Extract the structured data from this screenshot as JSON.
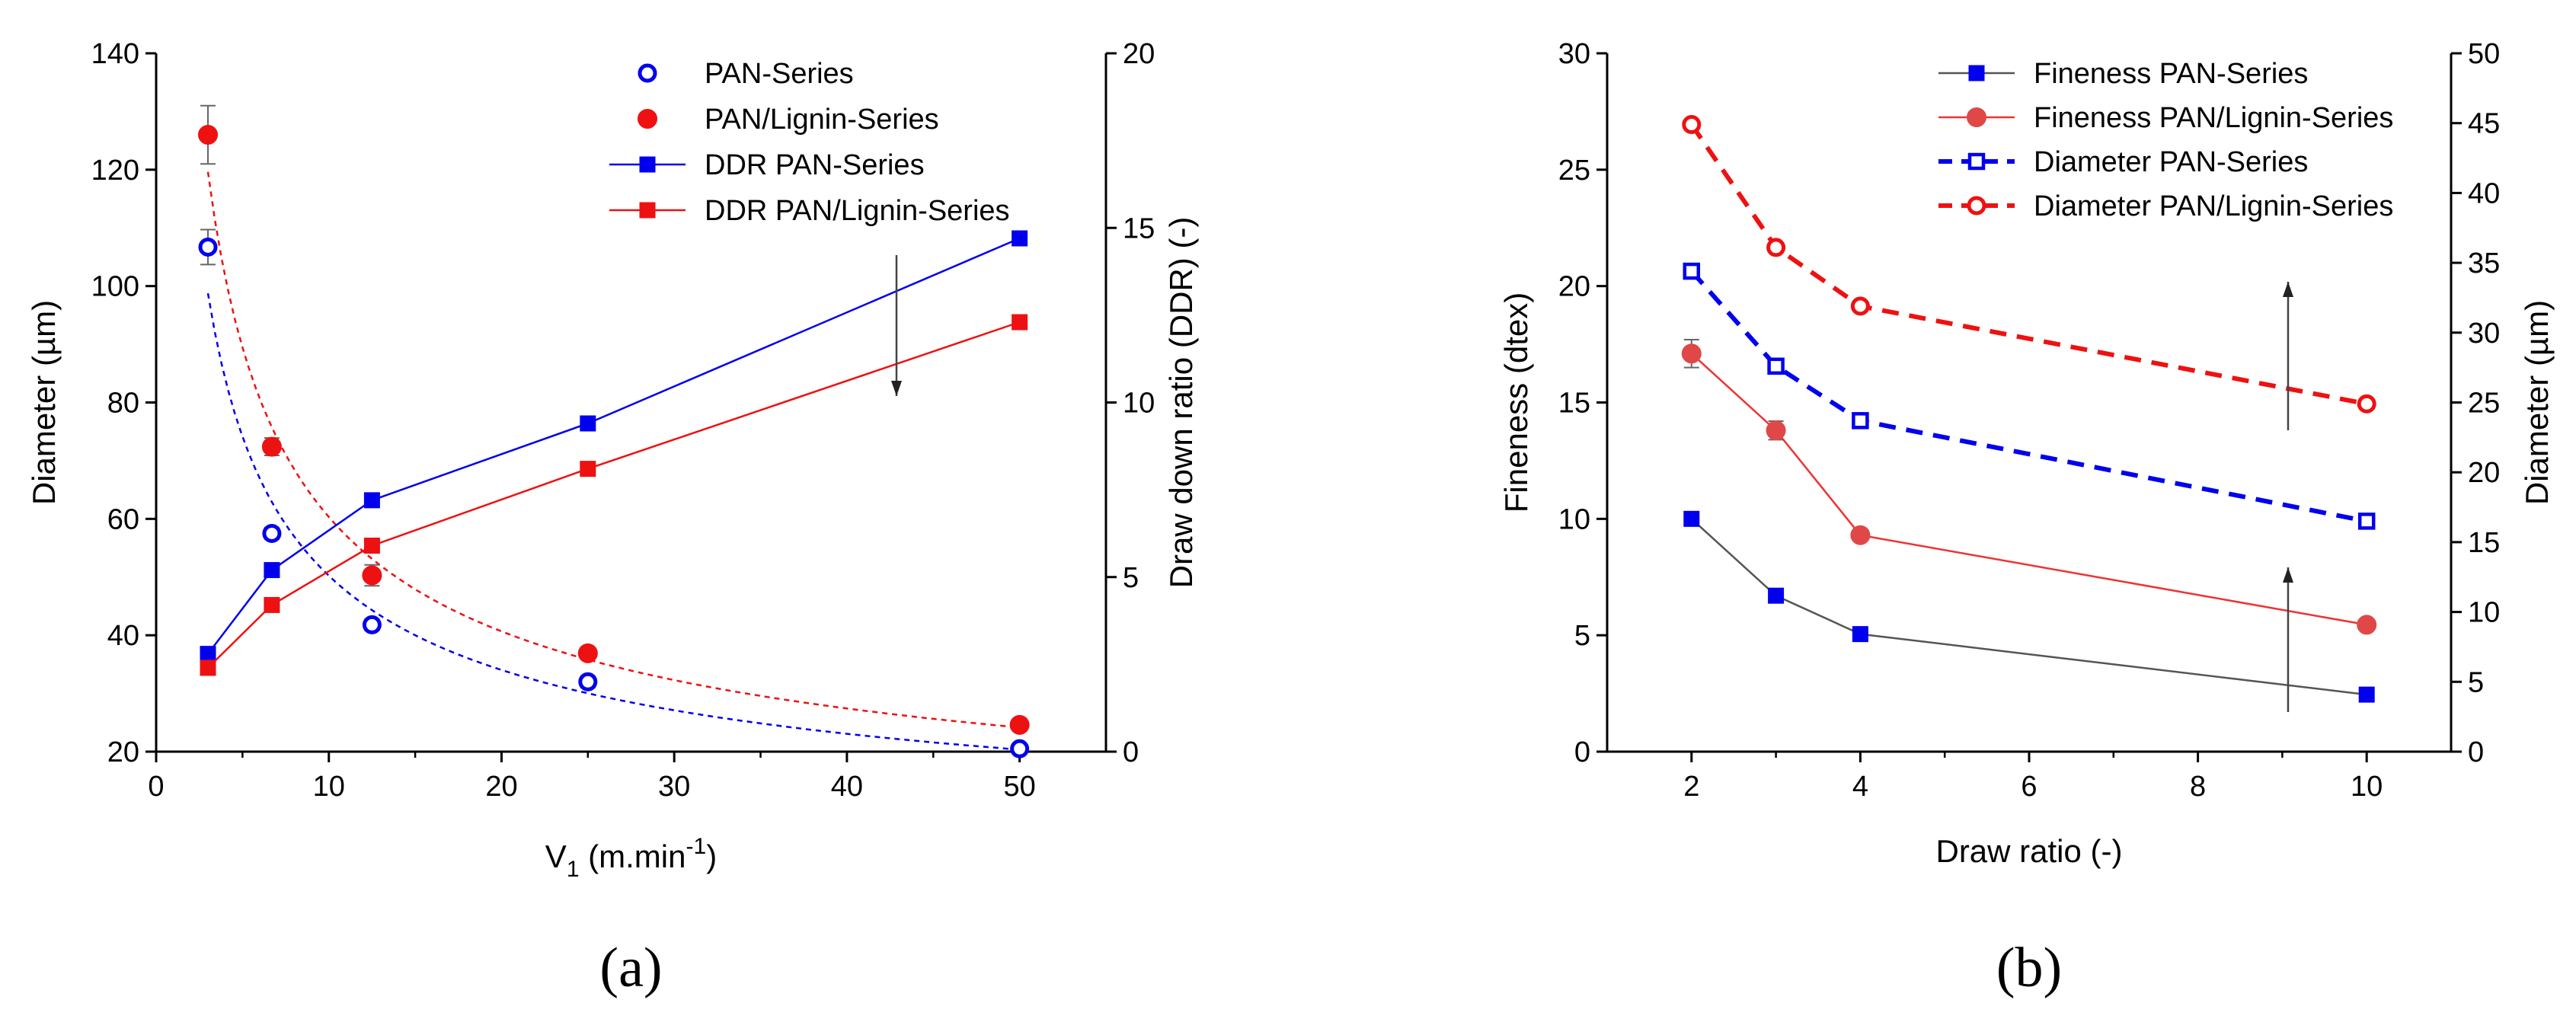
{
  "chart_data": [
    {
      "type": "scatter",
      "panel_label": "(a)",
      "xlabel": "V",
      "xlabel_sub": "1",
      "xlabel_units": " (m.min",
      "xlabel_sup": "-1",
      "xlabel_close": ")",
      "ylabel": "Diameter (µm)",
      "y2label": "Draw down ratio (DDR) (-)",
      "xlim": [
        0,
        55
      ],
      "ylim": [
        20,
        140
      ],
      "y2lim": [
        0,
        20
      ],
      "xticks": [
        "0",
        "10",
        "20",
        "30",
        "40",
        "50"
      ],
      "yticks": [
        "20",
        "40",
        "60",
        "80",
        "100",
        "120",
        "140"
      ],
      "y2ticks": [
        "0",
        "5",
        "10",
        "15",
        "20"
      ],
      "grid": false,
      "legend_position": "top-right",
      "series": [
        {
          "name": "PAN-Series",
          "axis": "left",
          "marker": "open-circle",
          "color": "#0000ee",
          "x": [
            3,
            6.7,
            12.5,
            25,
            50
          ],
          "y": [
            106.7,
            57.5,
            41.8,
            32,
            20.5
          ],
          "err": [
            3,
            1,
            1,
            1,
            0.5
          ]
        },
        {
          "name": "PAN/Lignin-Series",
          "axis": "left",
          "marker": "filled-circle",
          "color": "#ee1111",
          "x": [
            3,
            6.7,
            12.5,
            25,
            50
          ],
          "y": [
            126,
            72.4,
            50.3,
            36.9,
            24.6
          ],
          "err": [
            5,
            1.5,
            1.8,
            0.8,
            0.6
          ]
        },
        {
          "name": "DDR PAN-Series",
          "axis": "right",
          "marker": "filled-square",
          "color": "#0000ee",
          "x": [
            3,
            6.7,
            12.5,
            25,
            50
          ],
          "y": [
            2.8,
            5.2,
            7.2,
            9.4,
            14.7
          ]
        },
        {
          "name": "DDR PAN/Lignin-Series",
          "axis": "right",
          "marker": "filled-square",
          "color": "#ee1111",
          "x": [
            3,
            6.7,
            12.5,
            25,
            50
          ],
          "y": [
            2.4,
            4.2,
            5.9,
            8.1,
            12.3
          ]
        }
      ]
    },
    {
      "type": "line",
      "panel_label": "(b)",
      "xlabel": "Draw ratio (-)",
      "ylabel": "Fineness (dtex)",
      "y2label": "Diameter (µm)",
      "xlim": [
        1,
        11
      ],
      "ylim": [
        0,
        30
      ],
      "y2lim": [
        0,
        50
      ],
      "xticks": [
        "2",
        "4",
        "6",
        "8",
        "10"
      ],
      "yticks": [
        "0",
        "5",
        "10",
        "15",
        "20",
        "25",
        "30"
      ],
      "y2ticks": [
        "0",
        "5",
        "10",
        "15",
        "20",
        "25",
        "30",
        "35",
        "40",
        "45",
        "50"
      ],
      "grid": false,
      "legend_position": "top-right",
      "series": [
        {
          "name": "Fineness PAN-Series",
          "axis": "left",
          "marker": "filled-square",
          "color": "#0000ee",
          "line_color": "#555555",
          "x": [
            2,
            3,
            4,
            10
          ],
          "y": [
            10,
            6.7,
            5.05,
            2.45
          ]
        },
        {
          "name": "Fineness PAN/Lignin-Series",
          "axis": "left",
          "marker": "filled-circle",
          "color": "#e04848",
          "line_color": "#ee3333",
          "x": [
            2,
            3,
            4,
            10
          ],
          "y": [
            17.1,
            13.8,
            9.3,
            5.45
          ],
          "err": [
            0.6,
            0.4,
            0.2,
            0.1
          ]
        },
        {
          "name": "Diameter PAN-Series",
          "axis": "right",
          "marker": "open-square",
          "color": "#0000ee",
          "x": [
            2,
            3,
            4,
            10
          ],
          "y": [
            34.4,
            27.6,
            23.7,
            16.5
          ]
        },
        {
          "name": "Diameter PAN/Lignin-Series",
          "axis": "right",
          "marker": "open-circle",
          "color": "#ee1111",
          "x": [
            2,
            3,
            4,
            10
          ],
          "y": [
            44.9,
            36.1,
            31.9,
            24.9
          ]
        }
      ]
    }
  ]
}
